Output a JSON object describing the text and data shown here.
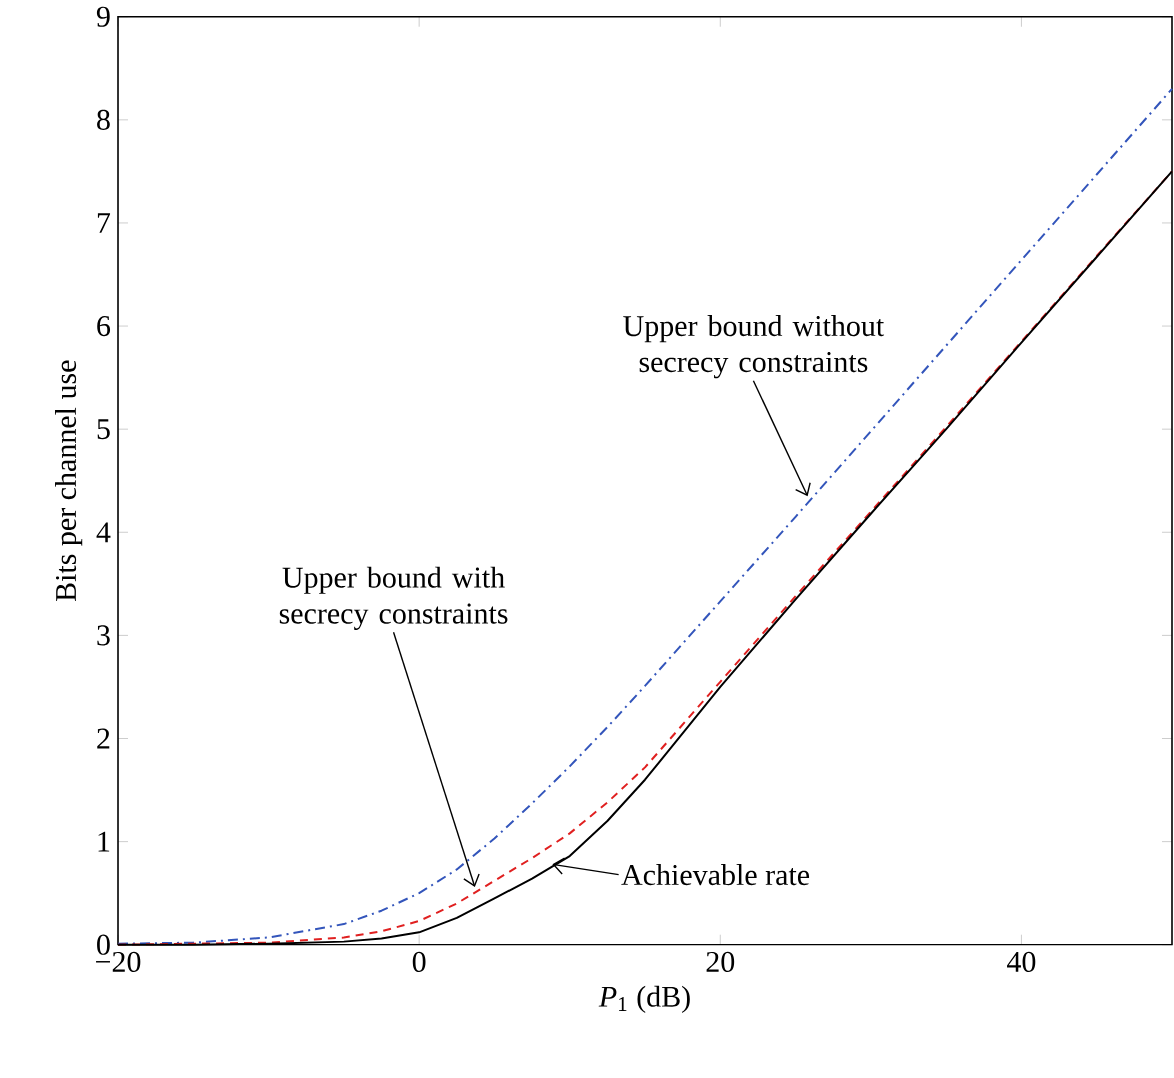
{
  "chart_data": {
    "type": "line",
    "xlabel": "*P*$_{1}$ (dB)",
    "ylabel": "Bits per channel use",
    "x": [
      -20,
      -15,
      -10,
      -5,
      -2.5,
      0,
      2.5,
      5,
      7.5,
      10,
      12.5,
      15,
      20,
      25,
      30,
      35,
      40,
      45,
      50
    ],
    "series": [
      {
        "color": "#3355bb",
        "line_style": "dashdot",
        "values": [
          0.01,
          0.02,
          0.07,
          0.2,
          0.33,
          0.5,
          0.73,
          1.03,
          1.37,
          1.73,
          2.11,
          2.51,
          3.33,
          4.15,
          4.98,
          5.81,
          6.64,
          7.47,
          8.3
        ]
      },
      {
        "color": "#e02020",
        "line_style": "dashed",
        "values": [
          0.0,
          0.01,
          0.02,
          0.07,
          0.13,
          0.23,
          0.4,
          0.62,
          0.84,
          1.08,
          1.38,
          1.72,
          2.55,
          3.38,
          4.2,
          5.02,
          5.85,
          6.68,
          7.5
        ]
      },
      {
        "color": "#000000",
        "line_style": "solid",
        "values": [
          0.0,
          0.0,
          0.01,
          0.03,
          0.06,
          0.12,
          0.26,
          0.45,
          0.64,
          0.86,
          1.2,
          1.6,
          2.5,
          3.35,
          4.18,
          5.0,
          5.84,
          6.67,
          7.5
        ]
      }
    ],
    "xlim": [
      -20,
      50
    ],
    "ylim": [
      0,
      9
    ],
    "xticks": [
      {
        "value": -20,
        "label": "−20"
      },
      0,
      20,
      40
    ],
    "yticks": [
      0,
      1,
      2,
      3,
      4,
      5,
      6,
      7,
      8,
      9
    ],
    "grid": false,
    "marker": "none",
    "annotations": [
      {
        "text": "Upper bound without secrecy constraints",
        "x": 25.8,
        "y": 4.35
      },
      {
        "text": "Upper bound with secrecy constraints",
        "x": 3.7,
        "y": 0.56
      },
      {
        "text": "Achievable rate",
        "x": 8.85,
        "y": 0.78
      }
    ]
  }
}
